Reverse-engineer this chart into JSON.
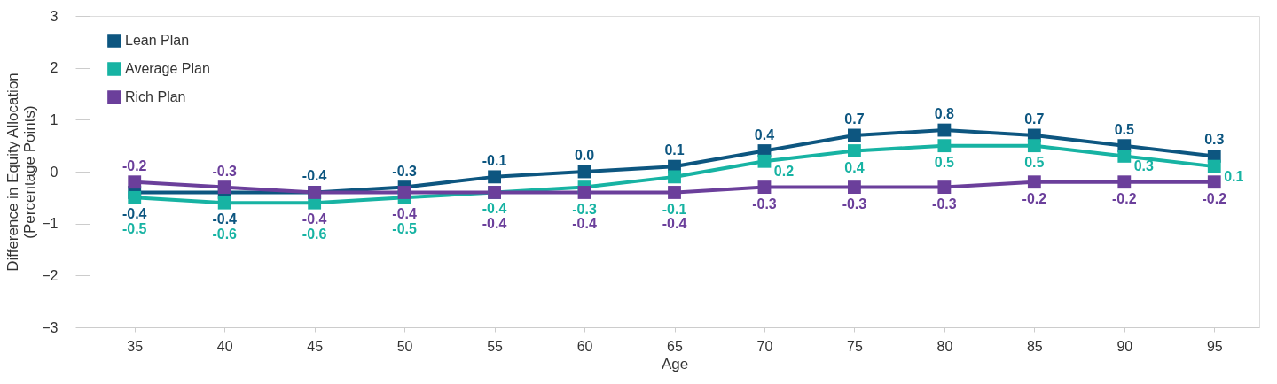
{
  "chart_data": {
    "type": "line",
    "xlabel": "Age",
    "ylabel": "Difference in Equity Allocation\n(Percentage Points)",
    "categories": [
      "35",
      "40",
      "45",
      "50",
      "55",
      "60",
      "65",
      "70",
      "75",
      "80",
      "85",
      "90",
      "95"
    ],
    "series": [
      {
        "name": "Lean Plan",
        "color": "#0d5680",
        "values": [
          -0.4,
          -0.4,
          -0.4,
          -0.3,
          -0.1,
          0.0,
          0.1,
          0.4,
          0.7,
          0.8,
          0.7,
          0.5,
          0.3
        ],
        "value_labels": [
          "-0.4",
          "-0.4",
          "-0.4",
          "-0.3",
          "-0.1",
          "0.0",
          "0.1",
          "0.4",
          "0.7",
          "0.8",
          "0.7",
          "0.5",
          "0.3"
        ]
      },
      {
        "name": "Average Plan",
        "color": "#17b3a3",
        "values": [
          -0.5,
          -0.6,
          -0.6,
          -0.5,
          -0.4,
          -0.3,
          -0.1,
          0.2,
          0.4,
          0.5,
          0.5,
          0.3,
          0.1
        ]
      },
      {
        "name": "Rich Plan",
        "color": "#6b3f9b",
        "values": [
          -0.2,
          -0.3,
          -0.4,
          -0.4,
          -0.4,
          -0.4,
          -0.4,
          -0.3,
          -0.3,
          -0.3,
          -0.2,
          -0.2,
          -0.2
        ]
      }
    ],
    "ylim": [
      -3,
      3
    ],
    "yticks": [
      -3,
      -2,
      -1,
      0,
      1,
      2,
      3
    ],
    "grid": false,
    "legend": "top left",
    "marker": "square",
    "line_style": "solid",
    "data_labels": true
  }
}
